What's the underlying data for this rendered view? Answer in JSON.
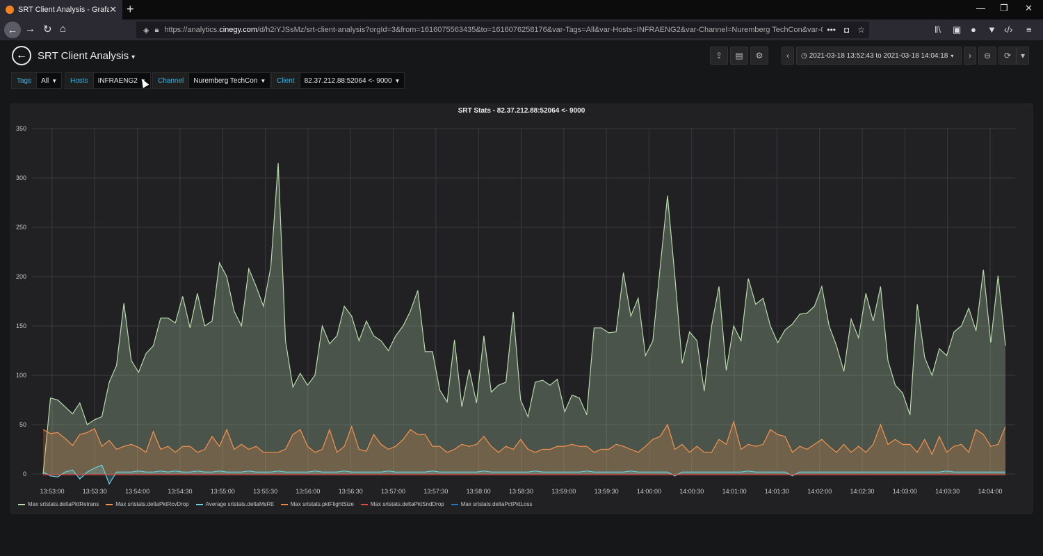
{
  "browser": {
    "tab_title": "SRT Client Analysis - Grafana",
    "url_prefix": "https://analytics.",
    "url_domain": "cinegy.com",
    "url_rest": "/d/h2iYJSsMz/srt-client-analysis?orgId=3&from=1616075563435&to=1616076258176&var-Tags=All&var-Hosts=INFRAENG2&var-Channel=Nuremberg TechCon&var-C",
    "url_more": "•••"
  },
  "dashboard": {
    "title": "SRT Client Analysis",
    "time_range": "2021-03-18 13:52:43 to 2021-03-18 14:04:18"
  },
  "variables": {
    "tags": {
      "label": "Tags",
      "value": "All"
    },
    "hosts": {
      "label": "Hosts",
      "value": "INFRAENG2"
    },
    "channel": {
      "label": "Channel",
      "value": "Nuremberg TechCon"
    },
    "client": {
      "label": "Client",
      "value": "82.37.212.88:52064 <- 9000"
    }
  },
  "panel": {
    "title": "SRT Stats - 82.37.212.88:52064 <- 9000"
  },
  "chart_data": {
    "type": "area",
    "title": "SRT Stats - 82.37.212.88:52064 <- 9000",
    "ylim": [
      0,
      350
    ],
    "yticks": [
      0,
      50,
      100,
      150,
      200,
      250,
      300,
      350
    ],
    "xticks": [
      "13:53:00",
      "13:53:30",
      "13:54:00",
      "13:54:30",
      "13:55:00",
      "13:55:30",
      "13:56:00",
      "13:56:30",
      "13:57:00",
      "13:57:30",
      "13:58:00",
      "13:58:30",
      "13:59:00",
      "13:59:30",
      "14:00:00",
      "14:00:30",
      "14:01:00",
      "14:01:30",
      "14:02:00",
      "14:02:30",
      "14:03:00",
      "14:03:30",
      "14:04:00"
    ],
    "grid": true,
    "legend_position": "bottom",
    "series": [
      {
        "name": "Max srtstats.deltaPktRetrans",
        "color": "#b7dbab",
        "values": [
          0,
          77,
          75,
          68,
          61,
          72,
          50,
          55,
          58,
          93,
          110,
          173,
          115,
          103,
          122,
          130,
          158,
          158,
          153,
          180,
          148,
          183,
          150,
          155,
          214,
          200,
          165,
          150,
          208,
          190,
          170,
          210,
          315,
          135,
          88,
          102,
          90,
          100,
          150,
          132,
          140,
          170,
          160,
          135,
          155,
          140,
          135,
          125,
          140,
          150,
          165,
          186,
          124,
          124,
          85,
          73,
          136,
          68,
          106,
          72,
          140,
          83,
          90,
          93,
          164,
          75,
          58,
          93,
          95,
          90,
          96,
          63,
          80,
          77,
          60,
          148,
          148,
          143,
          144,
          204,
          160,
          178,
          120,
          135,
          210,
          282,
          200,
          112,
          144,
          135,
          84,
          150,
          190,
          105,
          150,
          135,
          198,
          172,
          178,
          150,
          133,
          146,
          152,
          162,
          163,
          170,
          190,
          150,
          130,
          104,
          157,
          138,
          183,
          155,
          190,
          115,
          90,
          82,
          60,
          172,
          118,
          100,
          127,
          120,
          144,
          150,
          168,
          145,
          207,
          133,
          201,
          130
        ]
      },
      {
        "name": "Max srtstats.deltaPktRcvDrop",
        "color": "#f9934e",
        "values": [
          45,
          41,
          42,
          36,
          29,
          40,
          42,
          46,
          28,
          34,
          25,
          28,
          30,
          27,
          22,
          43,
          25,
          28,
          22,
          28,
          28,
          22,
          25,
          38,
          28,
          45,
          25,
          30,
          25,
          28,
          22,
          22,
          22,
          25,
          40,
          45,
          28,
          22,
          25,
          45,
          22,
          28,
          48,
          25,
          23,
          40,
          30,
          25,
          28,
          35,
          45,
          40,
          40,
          28,
          28,
          22,
          25,
          30,
          28,
          30,
          38,
          28,
          22,
          28,
          25,
          35,
          25,
          22,
          25,
          25,
          28,
          28,
          30,
          28,
          28,
          22,
          25,
          25,
          30,
          28,
          25,
          22,
          28,
          35,
          38,
          50,
          25,
          30,
          22,
          28,
          22,
          22,
          35,
          30,
          53,
          25,
          30,
          28,
          30,
          45,
          40,
          38,
          22,
          28,
          25,
          30,
          35,
          28,
          22,
          30,
          22,
          28,
          22,
          30,
          50,
          30,
          35,
          30,
          30,
          22,
          35,
          20,
          38,
          22,
          28,
          30,
          22,
          45,
          40,
          28,
          30,
          48
        ]
      },
      {
        "name": "Average srtstats.deltaMsRtt",
        "color": "#6ed0e0",
        "values": [
          2,
          -2,
          -3,
          2,
          4,
          -5,
          2,
          6,
          9,
          -10,
          2,
          2,
          2,
          3,
          2,
          2,
          3,
          2,
          3,
          2,
          2,
          3,
          2,
          2,
          3,
          2,
          2,
          2,
          3,
          2,
          2,
          2,
          3,
          2,
          2,
          2,
          2,
          3,
          2,
          2,
          2,
          3,
          2,
          2,
          2,
          2,
          2,
          3,
          2,
          2,
          2,
          2,
          2,
          3,
          2,
          2,
          2,
          2,
          2,
          2,
          3,
          2,
          2,
          2,
          2,
          2,
          2,
          3,
          2,
          2,
          2,
          2,
          2,
          2,
          3,
          2,
          2,
          2,
          2,
          2,
          3,
          2,
          2,
          2,
          2,
          2,
          -2,
          2,
          2,
          2,
          2,
          2,
          2,
          2,
          2,
          2,
          3,
          2,
          2,
          2,
          2,
          2,
          -2,
          2,
          2,
          2,
          2,
          2,
          2,
          2,
          2,
          2,
          2,
          2,
          2,
          2,
          2,
          2,
          2,
          2,
          2,
          2,
          2,
          3,
          2,
          2,
          2,
          2,
          2,
          2,
          2,
          2
        ]
      },
      {
        "name": "Max srtstats.pktFlightSize",
        "color": "#ef843c",
        "values": []
      },
      {
        "name": "Max srtstats.deltaPktSndDrop",
        "color": "#e24d42",
        "values": []
      },
      {
        "name": "Max srtstats.deltaPctPktLoss",
        "color": "#1f78c1",
        "values": []
      }
    ]
  }
}
